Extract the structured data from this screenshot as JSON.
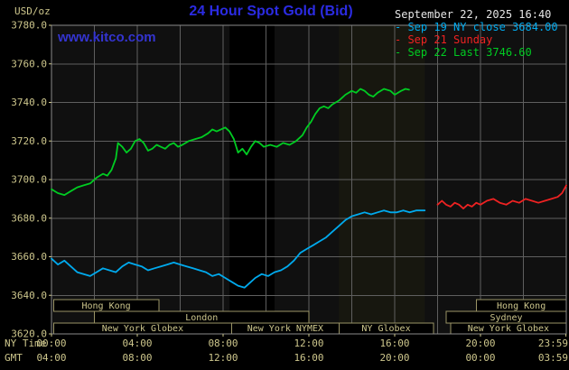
{
  "header": {
    "units_label": "USD/oz",
    "title": "24 Hour Spot Gold (Bid)",
    "datetime": "September 22, 2025 16:40",
    "watermark": "www.kitco.com"
  },
  "legend": {
    "items": [
      {
        "text": "- Sep 19 NY close 3684.00",
        "color": "#00aaee"
      },
      {
        "text": "- Sep 21 Sunday",
        "color": "#ee2222"
      },
      {
        "text": "- Sep 22 Last 3746.60",
        "color": "#00cc22"
      }
    ]
  },
  "axis_corner": {
    "ny_time": "NY Time",
    "gmt": "GMT"
  },
  "colors": {
    "background": "#000000",
    "plot_bg": "#101010",
    "grid": "#5f5f5f",
    "border": "#8a8a8a",
    "axis_text": "#cdc68c",
    "title_blue": "#2b2be2",
    "kitco_blue": "#3434d0",
    "datetime_text": "#e6e6e6",
    "session_border": "#9a9466",
    "session_fill": "#000000"
  },
  "chart_data": {
    "type": "line",
    "title": "24 Hour Spot Gold (Bid)",
    "ylabel": "USD/oz",
    "ylim": [
      3620,
      3780
    ],
    "yticks": [
      3780,
      3760,
      3740,
      3720,
      3700,
      3680,
      3660,
      3640,
      3620
    ],
    "grid": {
      "x_step_hours": 2,
      "y_step": 20
    },
    "x_axis": {
      "hours": [
        0,
        4,
        8,
        12,
        16,
        20,
        23.983
      ],
      "ny_labels": [
        "00:00",
        "04:00",
        "08:00",
        "12:00",
        "16:00",
        "20:00",
        "23:59"
      ],
      "gmt_labels": [
        "04:00",
        "08:00",
        "12:00",
        "16:00",
        "20:00",
        "00:00",
        "03:59"
      ]
    },
    "bands": [
      {
        "start_hour": 8.3,
        "end_hour": 10.4,
        "color": "#000000"
      },
      {
        "start_hour": 13.4,
        "end_hour": 17.4,
        "color": "#17170f"
      }
    ],
    "series": [
      {
        "name": "Sep 19 NY close",
        "color": "#00aaee",
        "close": 3684.0,
        "points": [
          [
            0,
            3659
          ],
          [
            0.3,
            3656
          ],
          [
            0.6,
            3658
          ],
          [
            0.9,
            3655
          ],
          [
            1.2,
            3652
          ],
          [
            1.5,
            3651
          ],
          [
            1.8,
            3650
          ],
          [
            2.1,
            3652
          ],
          [
            2.4,
            3654
          ],
          [
            2.7,
            3653
          ],
          [
            3.0,
            3652
          ],
          [
            3.3,
            3655
          ],
          [
            3.6,
            3657
          ],
          [
            3.9,
            3656
          ],
          [
            4.2,
            3655
          ],
          [
            4.5,
            3653
          ],
          [
            4.8,
            3654
          ],
          [
            5.1,
            3655
          ],
          [
            5.4,
            3656
          ],
          [
            5.7,
            3657
          ],
          [
            6.0,
            3656
          ],
          [
            6.3,
            3655
          ],
          [
            6.6,
            3654
          ],
          [
            6.9,
            3653
          ],
          [
            7.2,
            3652
          ],
          [
            7.5,
            3650
          ],
          [
            7.8,
            3651
          ],
          [
            8.1,
            3649
          ],
          [
            8.4,
            3647
          ],
          [
            8.7,
            3645
          ],
          [
            9.0,
            3644
          ],
          [
            9.2,
            3646
          ],
          [
            9.5,
            3649
          ],
          [
            9.8,
            3651
          ],
          [
            10.1,
            3650
          ],
          [
            10.4,
            3652
          ],
          [
            10.7,
            3653
          ],
          [
            11.0,
            3655
          ],
          [
            11.3,
            3658
          ],
          [
            11.6,
            3662
          ],
          [
            11.9,
            3664
          ],
          [
            12.2,
            3666
          ],
          [
            12.5,
            3668
          ],
          [
            12.8,
            3670
          ],
          [
            13.1,
            3673
          ],
          [
            13.4,
            3676
          ],
          [
            13.7,
            3679
          ],
          [
            14.0,
            3681
          ],
          [
            14.3,
            3682
          ],
          [
            14.6,
            3683
          ],
          [
            14.9,
            3682
          ],
          [
            15.2,
            3683
          ],
          [
            15.5,
            3684
          ],
          [
            15.8,
            3683
          ],
          [
            16.1,
            3683
          ],
          [
            16.4,
            3684
          ],
          [
            16.7,
            3683
          ],
          [
            17.0,
            3684
          ],
          [
            17.4,
            3684
          ]
        ]
      },
      {
        "name": "Sep 21 Sunday",
        "color": "#ee2222",
        "points": [
          [
            18.0,
            3687
          ],
          [
            18.2,
            3689
          ],
          [
            18.4,
            3687
          ],
          [
            18.6,
            3686
          ],
          [
            18.8,
            3688
          ],
          [
            19.0,
            3687
          ],
          [
            19.2,
            3685
          ],
          [
            19.4,
            3687
          ],
          [
            19.6,
            3686
          ],
          [
            19.8,
            3688
          ],
          [
            20.0,
            3687
          ],
          [
            20.3,
            3689
          ],
          [
            20.6,
            3690
          ],
          [
            20.9,
            3688
          ],
          [
            21.2,
            3687
          ],
          [
            21.5,
            3689
          ],
          [
            21.8,
            3688
          ],
          [
            22.1,
            3690
          ],
          [
            22.4,
            3689
          ],
          [
            22.7,
            3688
          ],
          [
            23.0,
            3689
          ],
          [
            23.3,
            3690
          ],
          [
            23.6,
            3691
          ],
          [
            23.8,
            3693
          ],
          [
            24.0,
            3697
          ]
        ]
      },
      {
        "name": "Sep 22 Last",
        "color": "#00cc22",
        "last": 3746.6,
        "points": [
          [
            0,
            3695
          ],
          [
            0.3,
            3693
          ],
          [
            0.6,
            3692
          ],
          [
            0.9,
            3694
          ],
          [
            1.2,
            3696
          ],
          [
            1.5,
            3697
          ],
          [
            1.8,
            3698
          ],
          [
            2.1,
            3701
          ],
          [
            2.4,
            3703
          ],
          [
            2.6,
            3702
          ],
          [
            2.8,
            3705
          ],
          [
            3.0,
            3711
          ],
          [
            3.1,
            3719
          ],
          [
            3.3,
            3717
          ],
          [
            3.5,
            3714
          ],
          [
            3.7,
            3716
          ],
          [
            3.9,
            3720
          ],
          [
            4.1,
            3721
          ],
          [
            4.3,
            3719
          ],
          [
            4.5,
            3715
          ],
          [
            4.7,
            3716
          ],
          [
            4.9,
            3718
          ],
          [
            5.1,
            3717
          ],
          [
            5.3,
            3716
          ],
          [
            5.5,
            3718
          ],
          [
            5.7,
            3719
          ],
          [
            5.9,
            3717
          ],
          [
            6.1,
            3718
          ],
          [
            6.4,
            3720
          ],
          [
            6.7,
            3721
          ],
          [
            7.0,
            3722
          ],
          [
            7.3,
            3724
          ],
          [
            7.5,
            3726
          ],
          [
            7.7,
            3725
          ],
          [
            7.9,
            3726
          ],
          [
            8.1,
            3727
          ],
          [
            8.3,
            3725
          ],
          [
            8.5,
            3721
          ],
          [
            8.7,
            3714
          ],
          [
            8.9,
            3716
          ],
          [
            9.1,
            3713
          ],
          [
            9.3,
            3717
          ],
          [
            9.5,
            3720
          ],
          [
            9.7,
            3719
          ],
          [
            9.9,
            3717
          ],
          [
            10.2,
            3718
          ],
          [
            10.5,
            3717
          ],
          [
            10.8,
            3719
          ],
          [
            11.1,
            3718
          ],
          [
            11.4,
            3720
          ],
          [
            11.7,
            3723
          ],
          [
            11.9,
            3727
          ],
          [
            12.1,
            3730
          ],
          [
            12.3,
            3734
          ],
          [
            12.5,
            3737
          ],
          [
            12.7,
            3738
          ],
          [
            12.9,
            3737
          ],
          [
            13.1,
            3739
          ],
          [
            13.4,
            3741
          ],
          [
            13.7,
            3744
          ],
          [
            14.0,
            3746
          ],
          [
            14.2,
            3745
          ],
          [
            14.4,
            3747
          ],
          [
            14.6,
            3746
          ],
          [
            14.8,
            3744
          ],
          [
            15.0,
            3743
          ],
          [
            15.2,
            3745
          ],
          [
            15.5,
            3747
          ],
          [
            15.8,
            3746
          ],
          [
            16.0,
            3744
          ],
          [
            16.3,
            3746
          ],
          [
            16.5,
            3747
          ],
          [
            16.67,
            3746.6
          ]
        ]
      }
    ],
    "sessions": [
      {
        "row": 1,
        "start_hour": 0.1,
        "end_hour": 5.0,
        "label": "Hong Kong"
      },
      {
        "row": 1,
        "start_hour": 19.8,
        "end_hour": 24.0,
        "label": "Hong Kong"
      },
      {
        "row": 2,
        "start_hour": 2.0,
        "end_hour": 12.0,
        "label": "London"
      },
      {
        "row": 2,
        "start_hour": 18.4,
        "end_hour": 24.0,
        "label": "Sydney"
      },
      {
        "row": 3,
        "start_hour": 0.1,
        "end_hour": 8.4,
        "label": "New York Globex"
      },
      {
        "row": 3,
        "start_hour": 8.4,
        "end_hour": 13.4,
        "label": "New York NYMEX"
      },
      {
        "row": 3,
        "start_hour": 13.4,
        "end_hour": 17.8,
        "label": "NY Globex"
      },
      {
        "row": 3,
        "start_hour": 18.6,
        "end_hour": 24.0,
        "label": "New York Globex"
      }
    ]
  }
}
